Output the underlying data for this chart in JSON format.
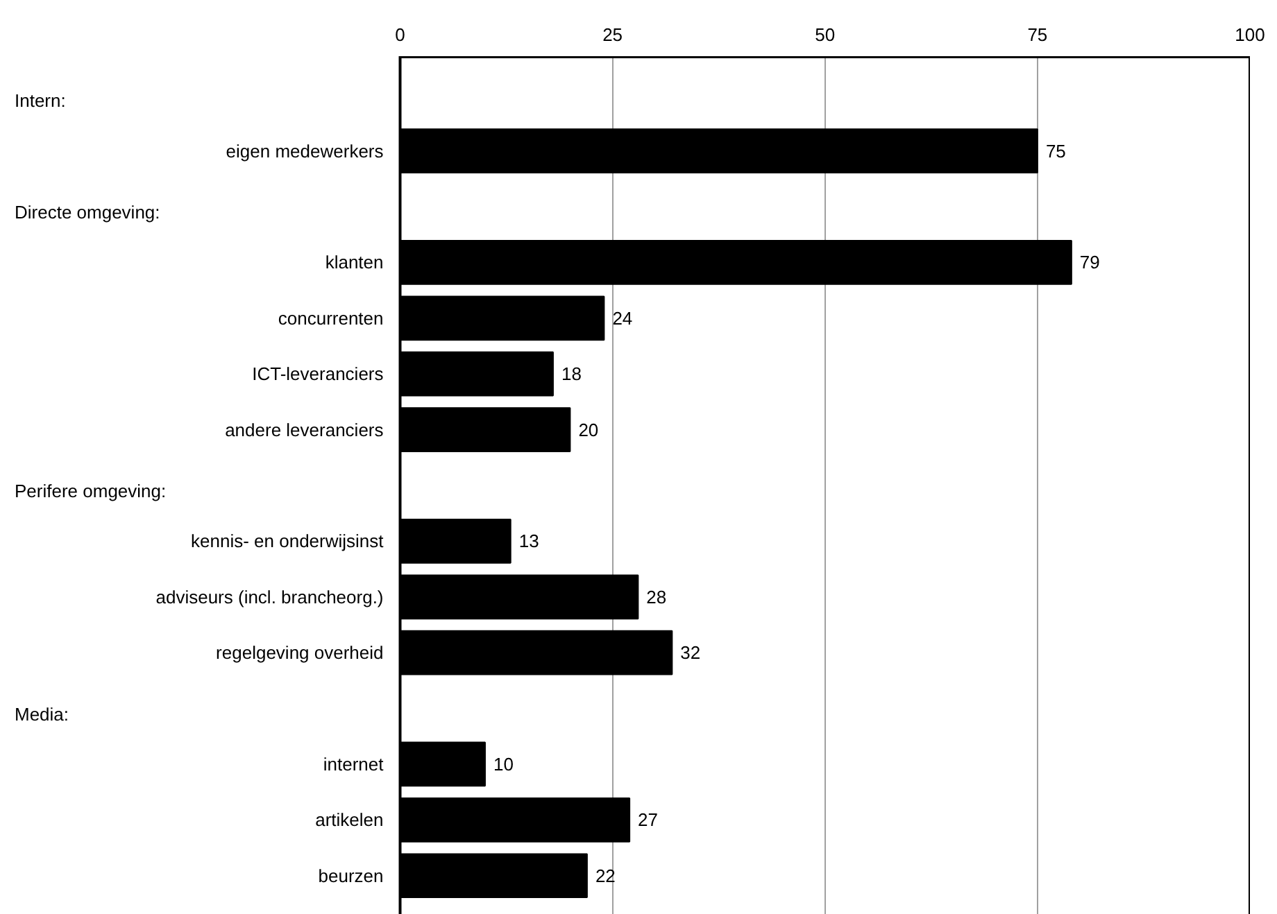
{
  "chart_data": {
    "type": "bar",
    "orientation": "horizontal",
    "categories": [
      null,
      "eigen medewerkers",
      null,
      "klanten",
      "concurrenten",
      "ICT-leveranciers",
      "andere leveranciers",
      null,
      "kennis- en onderwijsinst",
      "adviseurs (incl. brancheorg.)",
      "regelgeving overheid",
      null,
      "internet",
      "artikelen",
      "beurzen"
    ],
    "values": [
      null,
      75,
      null,
      79,
      24,
      18,
      20,
      null,
      13,
      28,
      32,
      null,
      10,
      27,
      22
    ],
    "color": "#000000",
    "xlim": [
      0,
      100
    ],
    "xticks": [
      0,
      25,
      50,
      75,
      100
    ],
    "grid": "x",
    "data_labels": true,
    "annotations": [
      "Intern:",
      "Directe omgeving:",
      "Perifere omgeving:",
      "Media:"
    ]
  }
}
